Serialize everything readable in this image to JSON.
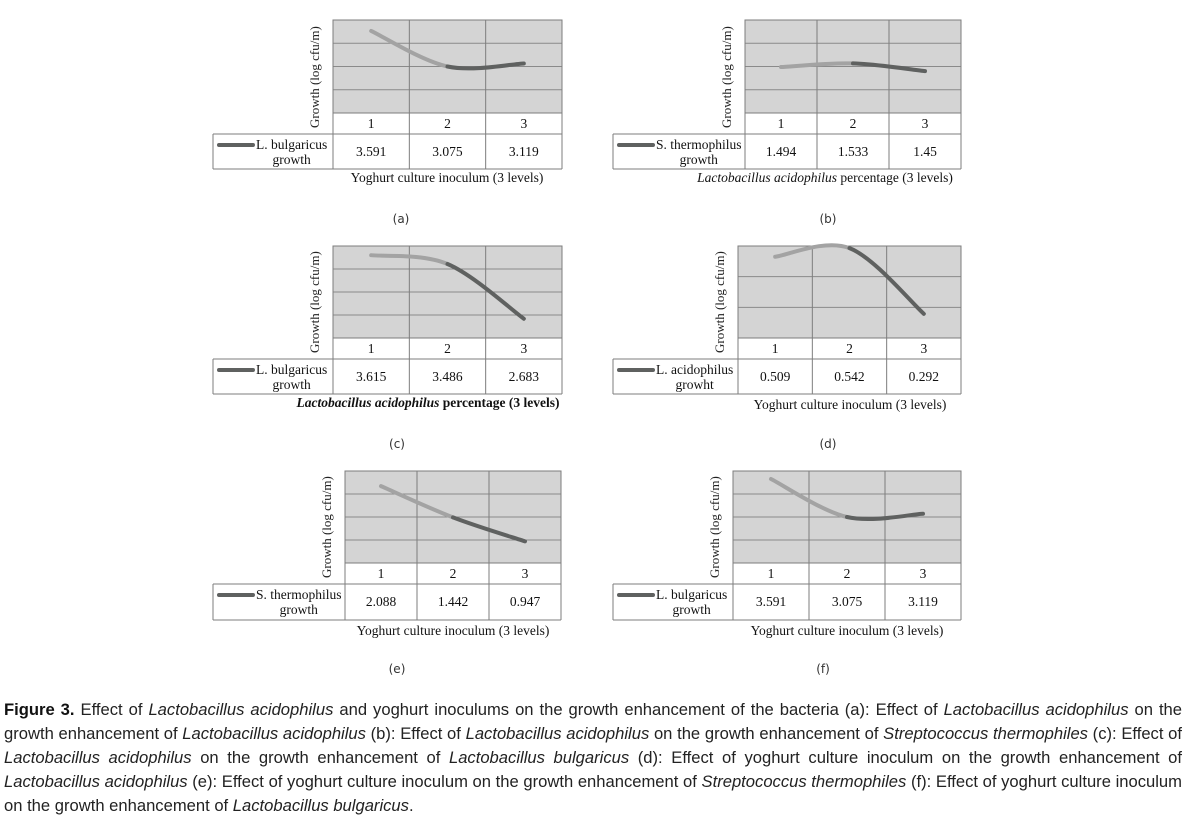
{
  "colors": {
    "plot_bg": "#d4d4d4",
    "grid": "#8a8a8a",
    "line_light": "#a3a3a3",
    "line_dark": "#5f6160",
    "border": "#7d7d7d"
  },
  "chart_data": [
    {
      "id": "a",
      "type": "line",
      "sublabel": "(a)",
      "ylabel": "Growth (log cfu/m)",
      "xlabel": "Yoghurt culture inoculum (3 levels)",
      "categories": [
        "1",
        "2",
        "3"
      ],
      "series": [
        {
          "name": "L. bulgaricus",
          "name2": "growth",
          "values": [
            3.591,
            3.075,
            3.119
          ]
        }
      ],
      "value_labels": [
        "3.591",
        "3.075",
        "3.119"
      ],
      "ylim": [
        2.5,
        3.75
      ],
      "grid": true,
      "legend": "data-table-left"
    },
    {
      "id": "b",
      "type": "line",
      "sublabel": "(b)",
      "ylabel": "Growth (log cfu/m)",
      "xlabel_italic": "Lactobacillus acidophilus",
      "xlabel_rest": " percentage (3 levels)",
      "categories": [
        "1",
        "2",
        "3"
      ],
      "series": [
        {
          "name": "S. thermophilus",
          "name2": "growth",
          "values": [
            1.494,
            1.533,
            1.45
          ]
        }
      ],
      "value_labels": [
        "1.494",
        "1.533",
        "1.45"
      ],
      "ylim": [
        1.0,
        2.0
      ],
      "grid": true,
      "legend": "data-table-left"
    },
    {
      "id": "c",
      "type": "line",
      "sublabel": "(c)",
      "ylabel": "Growth (log cfu/m)",
      "xlabel_italic": "Lactobacillus acidophilus",
      "xlabel_rest": " percentage (3 levels)",
      "categories": [
        "1",
        "2",
        "3"
      ],
      "series": [
        {
          "name": "L. bulgaricus",
          "name2": "growth",
          "values": [
            3.615,
            3.486,
            2.683
          ]
        }
      ],
      "value_labels": [
        "3.615",
        "3.486",
        "2.683"
      ],
      "ylim": [
        2.5,
        3.75
      ],
      "grid": true,
      "legend": "data-table-left"
    },
    {
      "id": "d",
      "type": "line",
      "sublabel": "(d)",
      "ylabel": "Growth (log cfu/m)",
      "xlabel": "Yoghurt culture inoculum (3 levels)",
      "categories": [
        "1",
        "2",
        "3"
      ],
      "series": [
        {
          "name": "L. acidophilus",
          "name2": "growht",
          "values": [
            0.509,
            0.542,
            0.292
          ]
        }
      ],
      "value_labels": [
        "0.509",
        "0.542",
        "0.292"
      ],
      "ylim": [
        0.2,
        0.55
      ],
      "grid": true,
      "legend": "data-table-left"
    },
    {
      "id": "e",
      "type": "line",
      "sublabel": "(e)",
      "ylabel": "Growth (log cfu/m)",
      "xlabel": "Yoghurt culture inoculum (3 levels)",
      "categories": [
        "1",
        "2",
        "3"
      ],
      "series": [
        {
          "name": "S. thermophilus",
          "name2": "growth",
          "values": [
            2.088,
            1.442,
            0.947
          ]
        }
      ],
      "value_labels": [
        "2.088",
        "1.442",
        "0.947"
      ],
      "ylim": [
        0.5,
        2.5
      ],
      "grid": true,
      "legend": "data-table-left"
    },
    {
      "id": "f",
      "type": "line",
      "sublabel": "(f)",
      "ylabel": "Growth (log cfu/m)",
      "xlabel": "Yoghurt culture inoculum (3 levels)",
      "categories": [
        "1",
        "2",
        "3"
      ],
      "series": [
        {
          "name": "L. bulgaricus",
          "name2": "growth",
          "values": [
            3.591,
            3.075,
            3.119
          ]
        }
      ],
      "value_labels": [
        "3.591",
        "3.075",
        "3.119"
      ],
      "ylim": [
        2.5,
        3.75
      ],
      "grid": true,
      "legend": "data-table-left"
    }
  ],
  "caption": {
    "label": "Figure 3.",
    "parts": [
      {
        "t": " Effect of "
      },
      {
        "i": "Lactobacillus acidophilus"
      },
      {
        "t": " and yoghurt inoculums on the growth enhancement of the bacteria (a): Effect of "
      },
      {
        "i": "Lactobacillus acidophilus"
      },
      {
        "t": " on the growth enhancement of "
      },
      {
        "i": "Lactobacillus acidophilus"
      },
      {
        "t": " (b): Effect of "
      },
      {
        "i": "Lactobacillus acidophilus"
      },
      {
        "t": " on the growth enhancement of "
      },
      {
        "i": "Streptococcus thermophiles"
      },
      {
        "t": " (c): Effect of "
      },
      {
        "i": "Lactobacillus acidophilus"
      },
      {
        "t": " on the growth enhancement of "
      },
      {
        "i": "Lactobacillus bulgaricus"
      },
      {
        "t": " (d): Effect of yoghurt culture inoculum on the growth enhancement of "
      },
      {
        "i": "Lactobacillus acidophilus"
      },
      {
        "t": " (e): Effect of yoghurt culture inoculum on the growth enhancement of "
      },
      {
        "i": "Streptococcus thermophiles"
      },
      {
        "t": " (f): Effect of yoghurt culture inoculum on the growth enhancement of "
      },
      {
        "i": "Lactobacillus bulgaricus"
      },
      {
        "t": "."
      }
    ]
  }
}
